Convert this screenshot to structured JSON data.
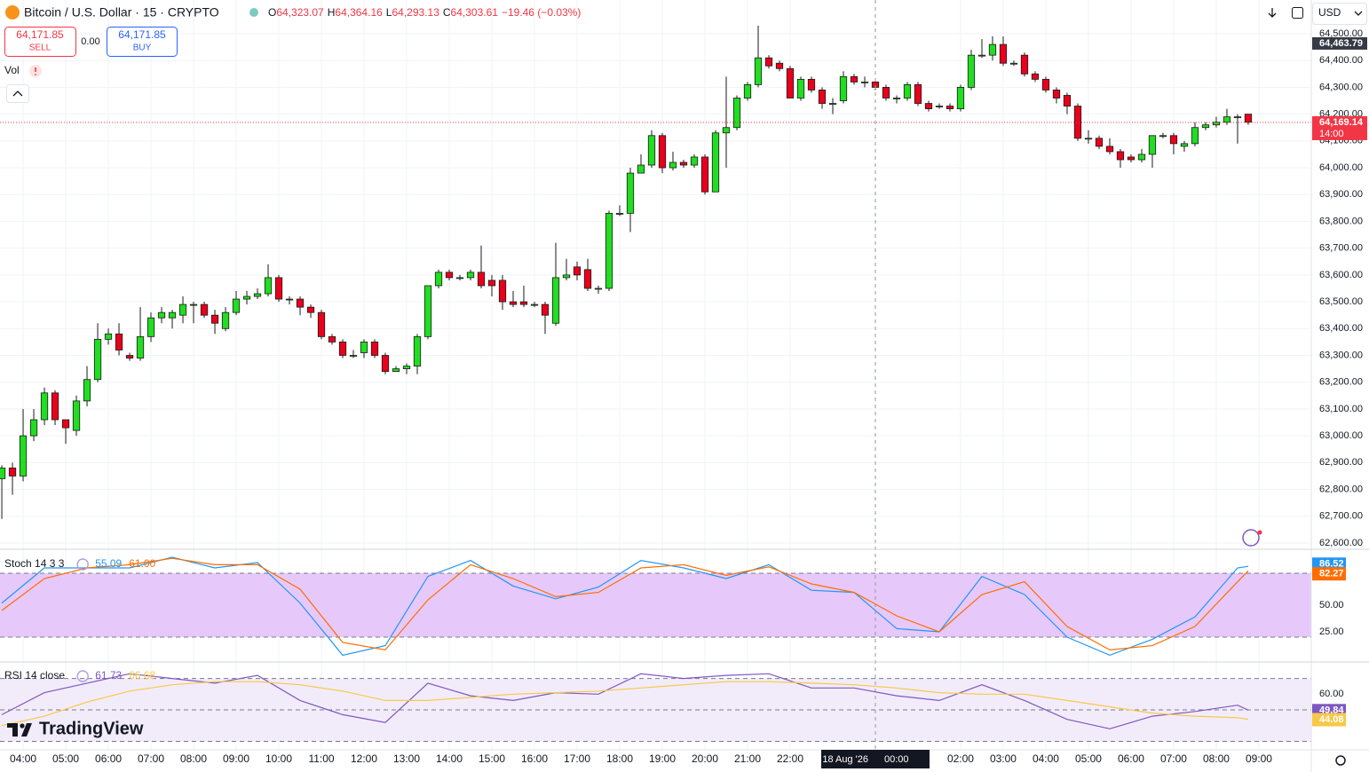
{
  "header": {
    "symbol": "Bitcoin / U.S. Dollar · 15 · CRYPTO",
    "ohlc": [
      {
        "key": "O",
        "value": "64,323.07"
      },
      {
        "key": "H",
        "value": "64,364.16"
      },
      {
        "key": "L",
        "value": "64,293.13"
      },
      {
        "key": "C",
        "value": "64,303.61"
      }
    ],
    "change": "−19.46 (−0.03%)",
    "sell": {
      "price": "64,171.85",
      "label": "SELL"
    },
    "spread": "0.00",
    "buy": {
      "price": "64,171.85",
      "label": "BUY"
    },
    "volume": "Vol",
    "currency": "USD",
    "logo": "TradingView"
  },
  "chart_data": [
    {
      "type": "candlestick",
      "up_color": "#22dd22",
      "down_color": "#e8001c",
      "grid": true,
      "xlim": [
        -0.17,
        122.92
      ],
      "ylim": [
        62580,
        64553
      ],
      "open": [
        62840,
        62880,
        62850,
        63000,
        63060,
        63160,
        63060,
        63020,
        63130,
        63210,
        63360,
        63380,
        63300,
        63290,
        63370,
        63440,
        63440,
        63450,
        63490,
        63490,
        63450,
        63400,
        63460,
        63510,
        63520,
        63530,
        63590,
        63510,
        63510,
        63480,
        63460,
        63370,
        63350,
        63300,
        63310,
        63350,
        63300,
        63240,
        63250,
        63260,
        63370,
        63560,
        63610,
        63590,
        63590,
        63610,
        63580,
        63580,
        63500,
        63500,
        63490,
        63490,
        63420,
        63590,
        63630,
        63620,
        63550,
        63550,
        63830,
        63830,
        63980,
        64010,
        64120,
        64000,
        64020,
        64010,
        64040,
        63910,
        64130,
        64150,
        64260,
        64310,
        64410,
        64390,
        64370,
        64260,
        64330,
        64290,
        64240,
        64250,
        64340,
        64320,
        64320,
        64300,
        64260,
        64260,
        64310,
        64240,
        64230,
        64230,
        64220,
        64300,
        64420,
        64420,
        64460,
        64390,
        64420,
        64350,
        64330,
        64290,
        64270,
        64230,
        64110,
        64110,
        64080,
        64060,
        64040,
        64030,
        64050,
        64120,
        64120,
        64080,
        64090,
        64150,
        64160,
        64170,
        64190,
        64200
      ],
      "high": [
        62890,
        62900,
        63100,
        63100,
        63180,
        63170,
        63060,
        63150,
        63260,
        63420,
        63400,
        63420,
        63310,
        63480,
        63460,
        63480,
        63470,
        63520,
        63500,
        63500,
        63470,
        63480,
        63540,
        63540,
        63550,
        63640,
        63600,
        63520,
        63520,
        63490,
        63470,
        63380,
        63360,
        63320,
        63360,
        63360,
        63310,
        63260,
        63270,
        63380,
        63560,
        63620,
        63620,
        63600,
        63620,
        63710,
        63600,
        63600,
        63540,
        63560,
        63500,
        63500,
        63720,
        63660,
        63650,
        63660,
        63560,
        63840,
        63860,
        64000,
        64050,
        64140,
        64130,
        64060,
        64030,
        64050,
        64050,
        64140,
        64340,
        64270,
        64320,
        64530,
        64420,
        64400,
        64380,
        64340,
        64340,
        64300,
        64260,
        64360,
        64350,
        64340,
        64330,
        64310,
        64270,
        64320,
        64320,
        64250,
        64240,
        64240,
        64310,
        64440,
        64480,
        64490,
        64490,
        64400,
        64430,
        64360,
        64340,
        64300,
        64280,
        64240,
        64140,
        64120,
        64110,
        64070,
        64050,
        64070,
        64120,
        64130,
        64130,
        64100,
        64170,
        64170,
        64190,
        64220,
        64200,
        64200
      ],
      "low": [
        62690,
        62780,
        62830,
        62980,
        63040,
        63040,
        62970,
        63000,
        63110,
        63200,
        63340,
        63300,
        63280,
        63280,
        63350,
        63420,
        63400,
        63420,
        63420,
        63440,
        63380,
        63390,
        63450,
        63490,
        63510,
        63520,
        63500,
        63490,
        63450,
        63440,
        63360,
        63340,
        63290,
        63290,
        63290,
        63290,
        63230,
        63240,
        63230,
        63230,
        63360,
        63550,
        63580,
        63580,
        63580,
        63550,
        63520,
        63470,
        63480,
        63480,
        63480,
        63380,
        63410,
        63580,
        63580,
        63540,
        63530,
        63540,
        63820,
        63760,
        63980,
        64000,
        63980,
        63990,
        64000,
        64000,
        63900,
        63910,
        64000,
        64140,
        64250,
        64300,
        64370,
        64360,
        64260,
        64250,
        64280,
        64220,
        64200,
        64240,
        64310,
        64300,
        64290,
        64250,
        64240,
        64250,
        64230,
        64210,
        64220,
        64210,
        64210,
        64290,
        64410,
        64400,
        64380,
        64380,
        64340,
        64320,
        64280,
        64240,
        64200,
        64100,
        64090,
        64070,
        64050,
        64000,
        64020,
        64020,
        64000,
        64110,
        64050,
        64060,
        64080,
        64140,
        64150,
        64160,
        64090,
        64160
      ],
      "close": [
        62880,
        62850,
        63000,
        63060,
        63160,
        63060,
        63030,
        63130,
        63210,
        63360,
        63380,
        63320,
        63290,
        63370,
        63440,
        63460,
        63460,
        63490,
        63490,
        63450,
        63420,
        63460,
        63510,
        63520,
        63530,
        63590,
        63510,
        63510,
        63480,
        63460,
        63370,
        63350,
        63300,
        63300,
        63350,
        63300,
        63240,
        63250,
        63260,
        63370,
        63560,
        63610,
        63590,
        63590,
        63610,
        63560,
        63560,
        63500,
        63490,
        63490,
        63490,
        63450,
        63590,
        63600,
        63600,
        63550,
        63550,
        63830,
        63830,
        63980,
        64010,
        64120,
        64000,
        64020,
        64010,
        64040,
        63910,
        64130,
        64150,
        64260,
        64310,
        64410,
        64380,
        64370,
        64260,
        64330,
        64290,
        64240,
        64240,
        64340,
        64320,
        64320,
        64300,
        64260,
        64260,
        64310,
        64240,
        64220,
        64230,
        64220,
        64300,
        64420,
        64420,
        64460,
        64390,
        64390,
        64350,
        64330,
        64290,
        64260,
        64230,
        64110,
        64110,
        64080,
        64060,
        64030,
        64030,
        64050,
        64120,
        64120,
        64090,
        64090,
        64150,
        64160,
        64170,
        64190,
        64190,
        64170
      ],
      "yticks": [
        {
          "value": 62600,
          "label": "62,600.00"
        },
        {
          "value": 62700,
          "label": "62,700.00"
        },
        {
          "value": 62800,
          "label": "62,800.00"
        },
        {
          "value": 62900,
          "label": "62,900.00"
        },
        {
          "value": 63000,
          "label": "63,000.00"
        },
        {
          "value": 63100,
          "label": "63,100.00"
        },
        {
          "value": 63200,
          "label": "63,200.00"
        },
        {
          "value": 63300,
          "label": "63,300.00"
        },
        {
          "value": 63400,
          "label": "63,400.00"
        },
        {
          "value": 63500,
          "label": "63,500.00"
        },
        {
          "value": 63600,
          "label": "63,600.00"
        },
        {
          "value": 63700,
          "label": "63,700.00"
        },
        {
          "value": 63800,
          "label": "63,800.00"
        },
        {
          "value": 63900,
          "label": "63,900.00"
        },
        {
          "value": 64000,
          "label": "64,000.00"
        },
        {
          "value": 64100,
          "label": "64,100.00"
        },
        {
          "value": 64200,
          "label": "64,200.00"
        },
        {
          "value": 64300,
          "label": "64,300.00"
        },
        {
          "value": 64400,
          "label": "64,400.00"
        },
        {
          "value": 64500,
          "label": "64,500.00"
        }
      ],
      "xticks": [
        {
          "value": 2,
          "label": "04:00"
        },
        {
          "value": 6,
          "label": "05:00"
        },
        {
          "value": 10,
          "label": "06:00"
        },
        {
          "value": 14,
          "label": "07:00"
        },
        {
          "value": 18,
          "label": "08:00"
        },
        {
          "value": 22,
          "label": "09:00"
        },
        {
          "value": 26,
          "label": "10:00"
        },
        {
          "value": 30,
          "label": "11:00"
        },
        {
          "value": 34,
          "label": "12:00"
        },
        {
          "value": 38,
          "label": "13:00"
        },
        {
          "value": 42,
          "label": "14:00"
        },
        {
          "value": 46,
          "label": "15:00"
        },
        {
          "value": 50,
          "label": "16:00"
        },
        {
          "value": 54,
          "label": "17:00"
        },
        {
          "value": 58,
          "label": "18:00"
        },
        {
          "value": 62,
          "label": "19:00"
        },
        {
          "value": 66,
          "label": "20:00"
        },
        {
          "value": 70,
          "label": "21:00"
        },
        {
          "value": 74,
          "label": "22:00"
        },
        {
          "value": 90,
          "label": "02:00"
        },
        {
          "value": 94,
          "label": "03:00"
        },
        {
          "value": 98,
          "label": "04:00"
        },
        {
          "value": 102,
          "label": "05:00"
        },
        {
          "value": 106,
          "label": "06:00"
        },
        {
          "value": 110,
          "label": "07:00"
        },
        {
          "value": 114,
          "label": "08:00"
        },
        {
          "value": 118,
          "label": "09:00"
        }
      ],
      "crosshair": {
        "value": 82,
        "label": "Tue 18 Aug '26",
        "time": "00:00"
      },
      "markers": [
        {
          "value": 64169.14,
          "label": "64,169.14",
          "sub": "14:00",
          "color": "#f23645",
          "line": true
        },
        {
          "value": 64463.79,
          "label": "64,463.79",
          "color": "#363a45",
          "line": false
        }
      ]
    },
    {
      "type": "line",
      "title": "Stoch 14 3 3",
      "legend_values": [
        "55.09",
        "61.00"
      ],
      "xlim": [
        -0.17,
        122.92
      ],
      "ylim": [
        0,
        100
      ],
      "x": [
        0,
        4,
        8,
        12,
        16,
        20,
        24,
        28,
        32,
        36,
        40,
        44,
        48,
        52,
        56,
        60,
        64,
        68,
        72,
        76,
        80,
        84,
        88,
        92,
        96,
        100,
        104,
        108,
        112,
        116,
        117
      ],
      "series": [
        {
          "color": "#2196f3",
          "values": [
            52,
            85,
            85,
            85,
            95,
            85,
            90,
            52,
            3,
            12,
            77,
            92,
            68,
            56,
            67,
            92,
            85,
            75,
            88,
            64,
            62,
            28,
            25,
            77,
            60,
            20,
            3,
            18,
            39,
            85,
            86.52
          ]
        },
        {
          "color": "#ff6d00",
          "values": [
            45,
            75,
            85,
            88,
            94,
            88,
            88,
            65,
            15,
            8,
            55,
            88,
            75,
            58,
            62,
            85,
            88,
            78,
            86,
            70,
            62,
            40,
            25,
            60,
            72,
            30,
            8,
            12,
            30,
            72,
            82.27
          ]
        }
      ],
      "yticks": [
        {
          "value": 50,
          "label": "50.00"
        },
        {
          "value": 25,
          "label": "25.00"
        }
      ],
      "hlines": [
        80,
        20
      ],
      "band_color": "#e6c9fa"
    },
    {
      "type": "line",
      "title": "RSI 14 close",
      "legend_values": [
        "61.73",
        "66.68"
      ],
      "xlim": [
        -0.17,
        122.92
      ],
      "ylim": [
        24.6,
        79.4
      ],
      "x": [
        0,
        4,
        8,
        12,
        16,
        20,
        24,
        28,
        32,
        36,
        40,
        44,
        48,
        52,
        56,
        60,
        64,
        68,
        72,
        76,
        80,
        84,
        88,
        92,
        96,
        100,
        104,
        108,
        112,
        116,
        117
      ],
      "series": [
        {
          "color": "#7e57c2",
          "values": [
            47,
            61,
            67,
            73,
            70,
            67,
            72,
            56,
            47,
            42,
            67,
            59,
            56,
            61,
            60,
            73,
            70,
            72,
            73,
            64,
            64,
            59,
            56,
            66,
            56,
            44,
            38,
            46,
            49,
            53,
            49.84
          ]
        },
        {
          "color": "#f7c948",
          "values": [
            40,
            46,
            55,
            62,
            66,
            68,
            68,
            66,
            62,
            56,
            56,
            58,
            60,
            61,
            62,
            64,
            66,
            68,
            68,
            67,
            66,
            64,
            61,
            60,
            60,
            56,
            52,
            48,
            46,
            45,
            44.08
          ]
        }
      ],
      "yticks": [
        {
          "value": 60,
          "label": "60.00"
        }
      ],
      "hlines": [
        70,
        50,
        30
      ],
      "band_color": "#f2ecfa"
    }
  ]
}
